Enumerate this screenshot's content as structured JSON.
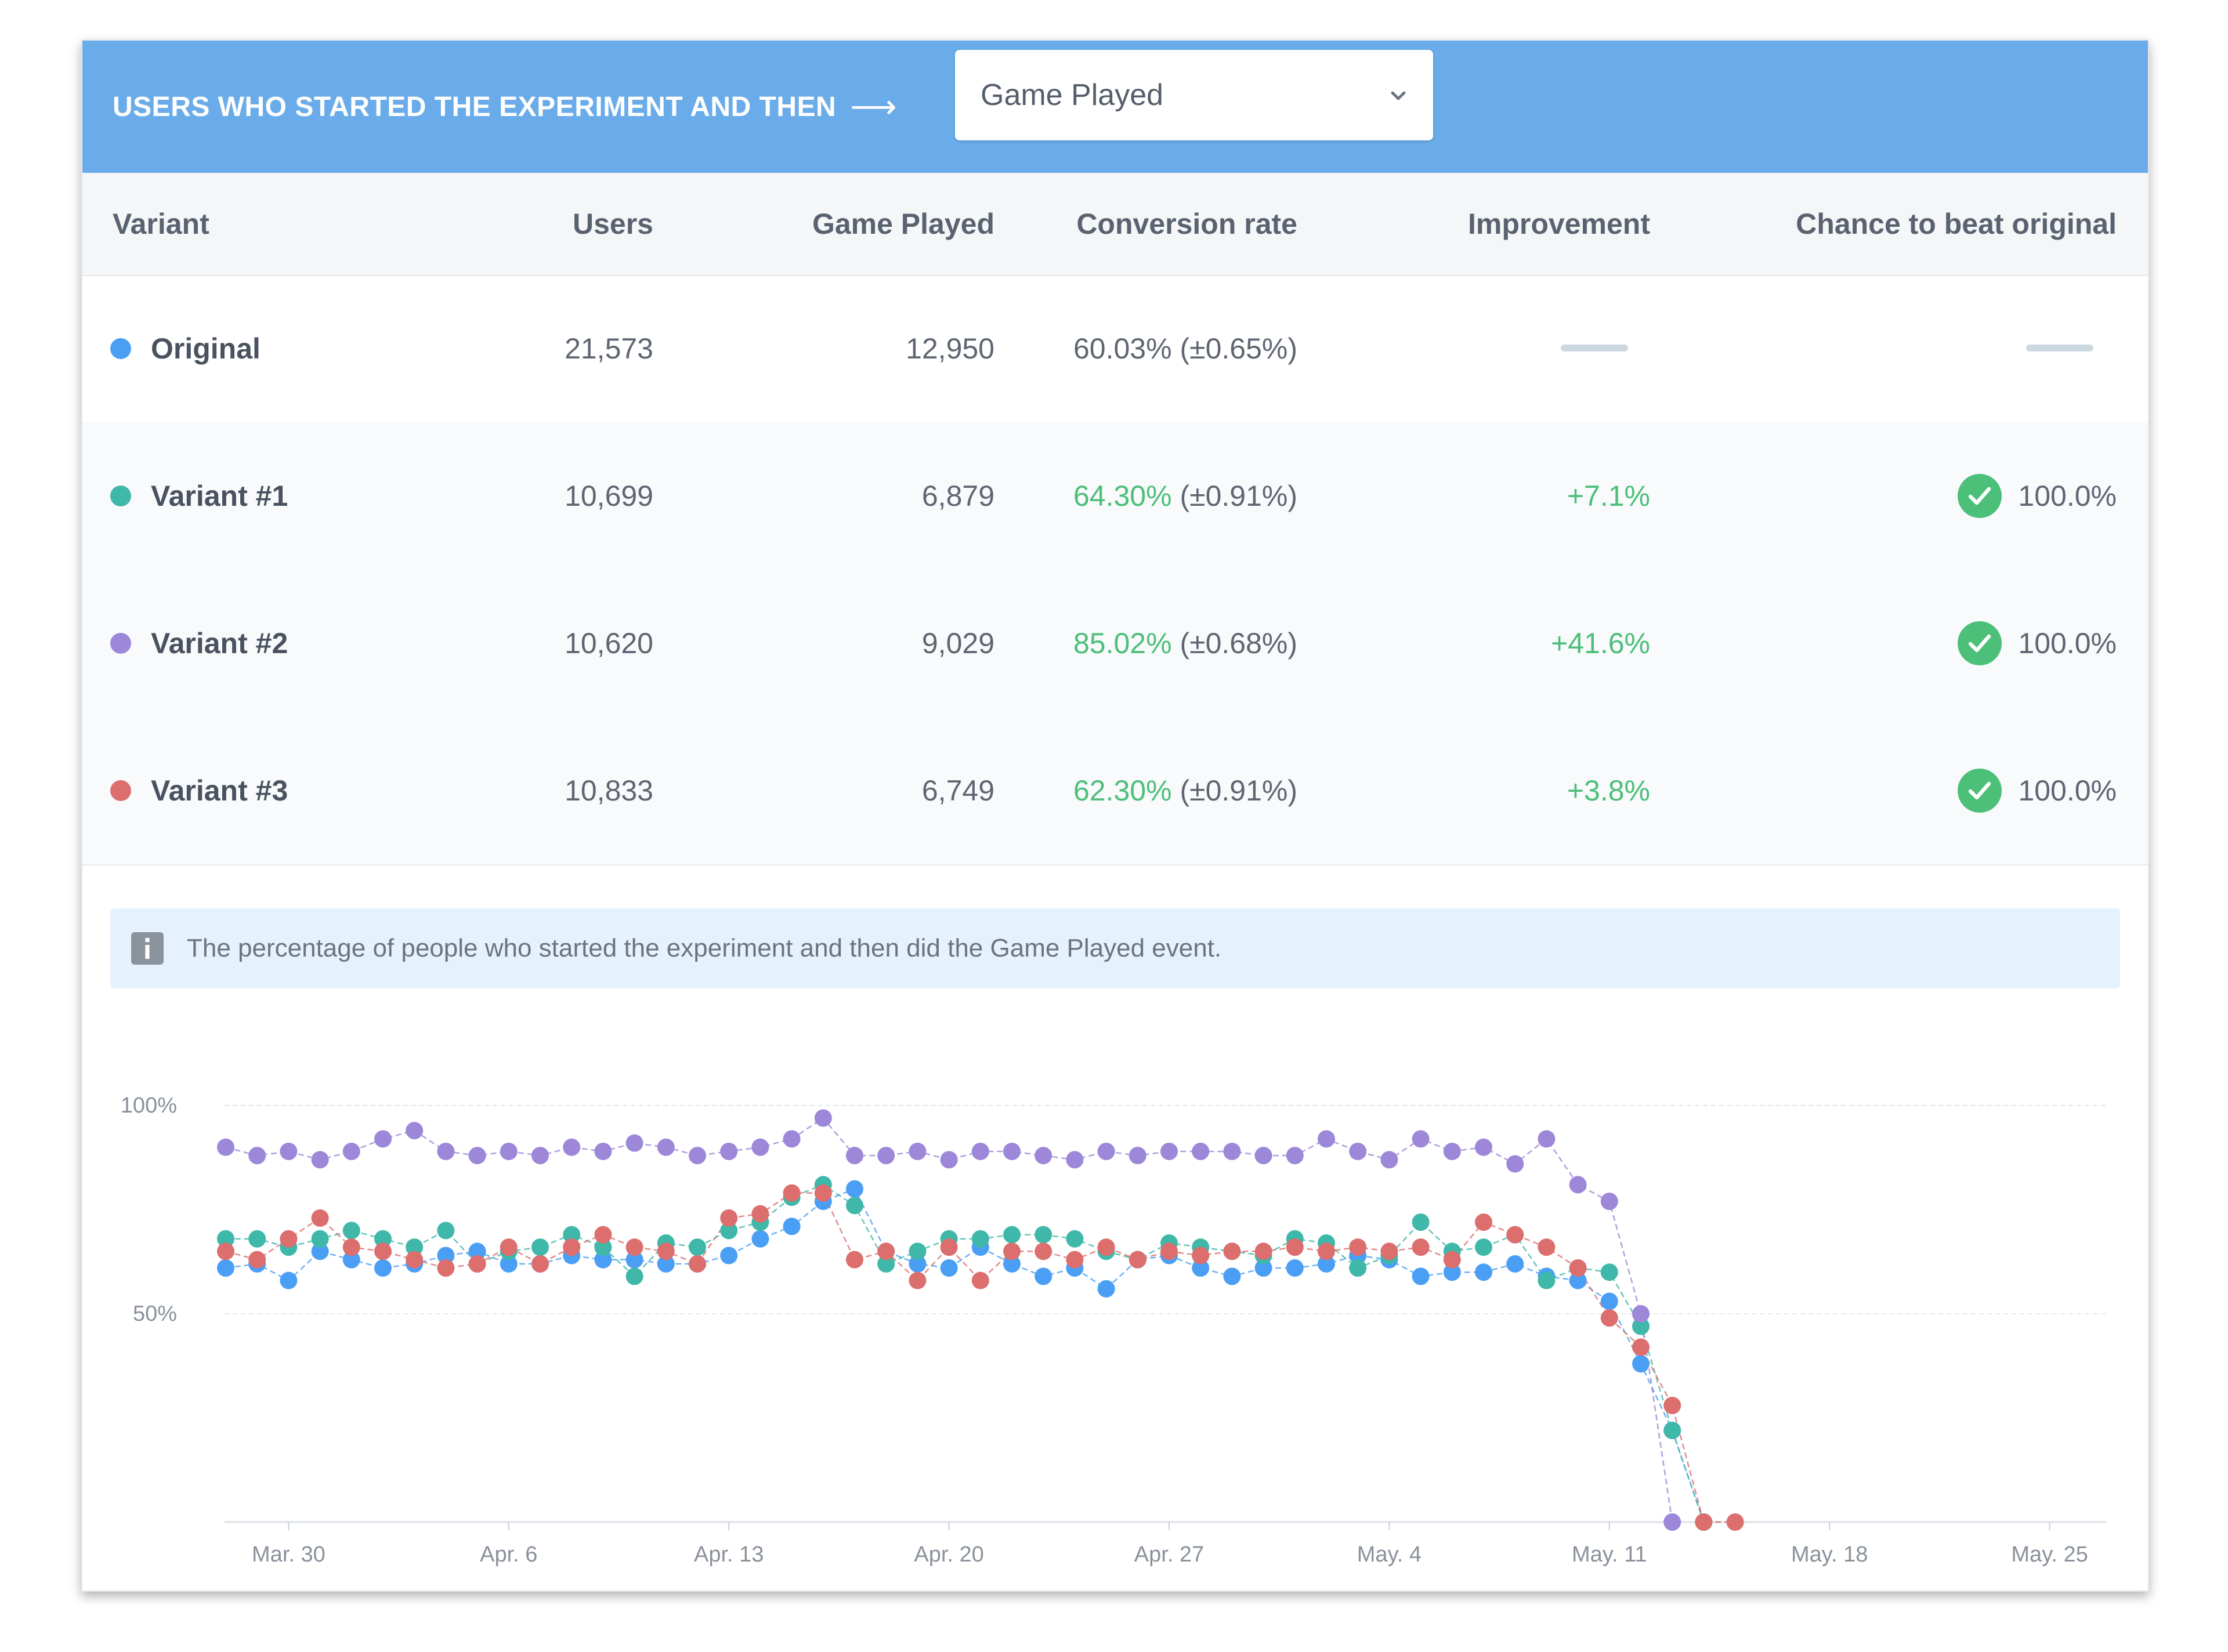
{
  "header": {
    "label": "USERS WHO STARTED THE EXPERIMENT AND THEN",
    "arrow": "⟶",
    "event_select": {
      "value": "Game Played"
    }
  },
  "table": {
    "columns": [
      "Variant",
      "Users",
      "Game Played",
      "Conversion rate",
      "Improvement",
      "Chance to beat original"
    ],
    "rows": [
      {
        "name": "Original",
        "color": "#4a9ff5",
        "users": "21,573",
        "events": "12,950",
        "rate": "60.03%",
        "margin": "(±0.65%)",
        "improvement": "",
        "chance": "",
        "highlight": false
      },
      {
        "name": "Variant #1",
        "color": "#3fb8a9",
        "users": "10,699",
        "events": "6,879",
        "rate": "64.30%",
        "margin": "(±0.91%)",
        "improvement": "+7.1%",
        "chance": "100.0%",
        "highlight": true
      },
      {
        "name": "Variant #2",
        "color": "#9c87d8",
        "users": "10,620",
        "events": "9,029",
        "rate": "85.02%",
        "margin": "(±0.68%)",
        "improvement": "+41.6%",
        "chance": "100.0%",
        "highlight": true
      },
      {
        "name": "Variant #3",
        "color": "#dc6e6e",
        "users": "10,833",
        "events": "6,749",
        "rate": "62.30%",
        "margin": "(±0.91%)",
        "improvement": "+3.8%",
        "chance": "100.0%",
        "highlight": true
      }
    ]
  },
  "info": {
    "icon": "info-icon",
    "text": "The percentage of people who started the experiment and then did the Game Played event."
  },
  "colors": {
    "header_bg": "#6aace9",
    "positive": "#4cbf78"
  },
  "chart_data": {
    "type": "line",
    "title": "",
    "xlabel": "",
    "ylabel": "",
    "ylim": [
      0,
      100
    ],
    "y_ticks": [
      {
        "value": 100,
        "label": "100%"
      },
      {
        "value": 50,
        "label": "50%"
      }
    ],
    "x_ticks": [
      {
        "index": 2,
        "label": "Mar. 30"
      },
      {
        "index": 9,
        "label": "Apr. 6"
      },
      {
        "index": 16,
        "label": "Apr. 13"
      },
      {
        "index": 23,
        "label": "Apr. 20"
      },
      {
        "index": 30,
        "label": "Apr. 27"
      },
      {
        "index": 37,
        "label": "May. 4"
      },
      {
        "index": 44,
        "label": "May. 11"
      },
      {
        "index": 51,
        "label": "May. 18"
      },
      {
        "index": 58,
        "label": "May. 25"
      }
    ],
    "x_count": 61,
    "series": [
      {
        "name": "Original",
        "color": "#4a9ff5",
        "values": [
          61,
          62,
          58,
          65,
          63,
          61,
          62,
          64,
          65,
          62,
          62,
          64,
          63,
          63,
          62,
          62,
          64,
          68,
          71,
          77,
          80,
          65,
          62,
          61,
          66,
          62,
          59,
          61,
          56,
          63,
          64,
          61,
          59,
          61,
          61,
          62,
          64,
          63,
          59,
          60,
          60,
          62,
          59,
          58,
          53,
          38,
          22,
          0
        ]
      },
      {
        "name": "Variant #1",
        "color": "#3fb8a9",
        "values": [
          68,
          68,
          66,
          68,
          70,
          68,
          66,
          70,
          62,
          65,
          66,
          69,
          66,
          59,
          67,
          66,
          70,
          72,
          78,
          81,
          76,
          62,
          65,
          68,
          68,
          69,
          69,
          68,
          65,
          63,
          67,
          66,
          65,
          64,
          68,
          67,
          61,
          64,
          72,
          65,
          66,
          69,
          58,
          61,
          60,
          47,
          22,
          0
        ]
      },
      {
        "name": "Variant #2",
        "color": "#9c87d8",
        "values": [
          90,
          88,
          89,
          87,
          89,
          92,
          94,
          89,
          88,
          89,
          88,
          90,
          89,
          91,
          90,
          88,
          89,
          90,
          92,
          97,
          88,
          88,
          89,
          87,
          89,
          89,
          88,
          87,
          89,
          88,
          89,
          89,
          89,
          88,
          88,
          92,
          89,
          87,
          92,
          89,
          90,
          86,
          92,
          81,
          77,
          50,
          0
        ]
      },
      {
        "name": "Variant #3",
        "color": "#dc6e6e",
        "values": [
          65,
          63,
          68,
          73,
          66,
          65,
          63,
          61,
          62,
          66,
          62,
          66,
          69,
          66,
          65,
          62,
          73,
          74,
          79,
          79,
          63,
          65,
          58,
          66,
          58,
          65,
          65,
          63,
          66,
          63,
          65,
          64,
          65,
          65,
          66,
          65,
          66,
          65,
          66,
          63,
          72,
          69,
          66,
          61,
          49,
          42,
          28,
          0,
          0
        ]
      }
    ]
  }
}
